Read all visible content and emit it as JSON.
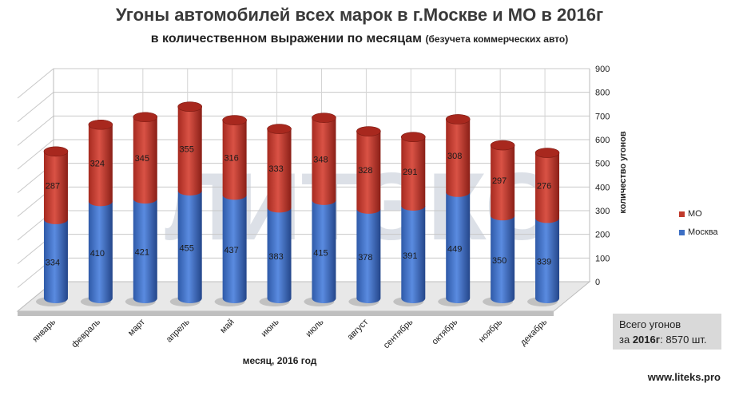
{
  "title": "Угоны автомобилей всех марок в г.Москве и МО в 2016г",
  "subtitle": "в количественном выражении по месяцам",
  "subtitle_note": "(безучета коммерческих авто)",
  "watermark": "ЛИТЭКС",
  "total_box": {
    "line1": "Всего угонов",
    "line2_prefix": "за",
    "line2_year": "2016г",
    "line2_suffix": ":  8570 шт."
  },
  "site": "www.liteks.pro",
  "colors": {
    "moscow": "#3d6fc4",
    "mo": "#c0392b",
    "floor": "#bfbfbf"
  },
  "chart_data": {
    "type": "bar",
    "stacked": true,
    "categories": [
      "январь",
      "февраль",
      "март",
      "апрель",
      "май",
      "июнь",
      "июль",
      "август",
      "сентябрь",
      "октябрь",
      "ноябрь",
      "декабрь"
    ],
    "series": [
      {
        "name": "Москва",
        "values": [
          334,
          410,
          421,
          455,
          437,
          383,
          415,
          378,
          391,
          449,
          350,
          339
        ]
      },
      {
        "name": "МО",
        "values": [
          287,
          324,
          345,
          355,
          316,
          333,
          348,
          328,
          291,
          308,
          297,
          276
        ]
      }
    ],
    "xlabel": "месяц, 2016  год",
    "ylabel": "количество угонов",
    "ylim": [
      0,
      900
    ],
    "yticks": [
      0,
      100,
      200,
      300,
      400,
      500,
      600,
      700,
      800,
      900
    ],
    "legend_position": "right",
    "grid": true
  }
}
